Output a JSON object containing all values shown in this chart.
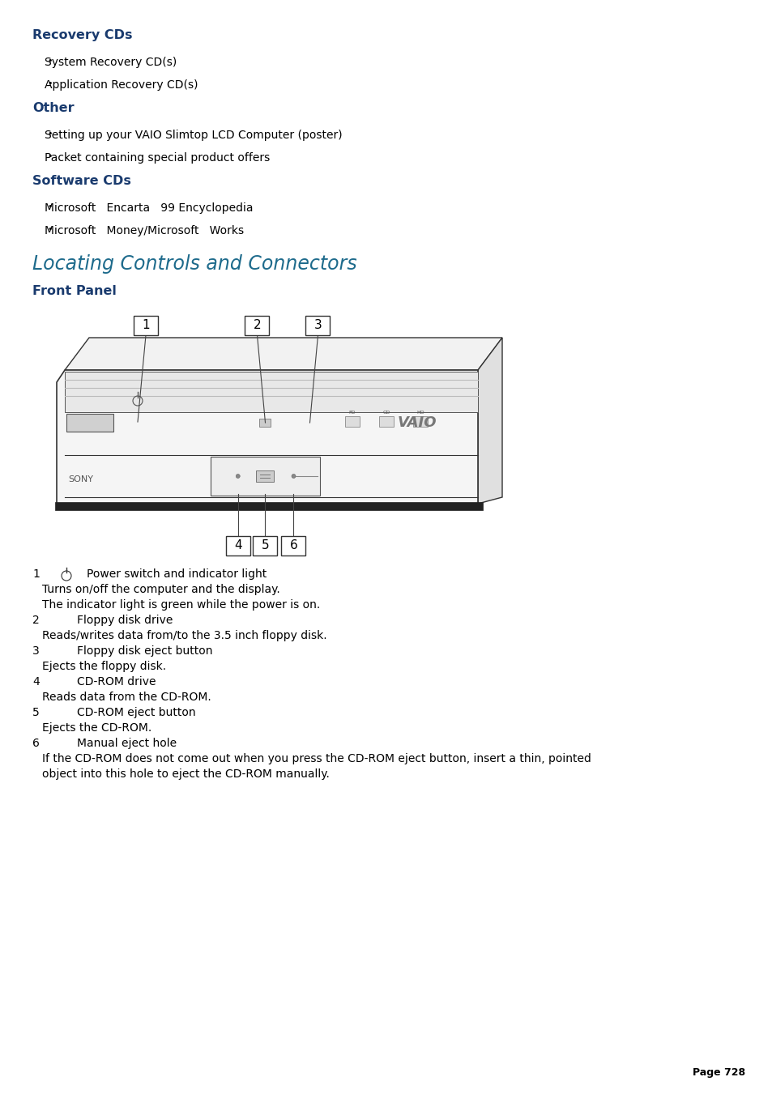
{
  "bg_color": "#ffffff",
  "dark_blue": "#1a3b6e",
  "teal_blue": "#1e6b8c",
  "black": "#000000",
  "page_number": "Page 728",
  "locating_title": "Locating Controls and Connectors",
  "front_panel_heading": "Front Panel",
  "sections": [
    {
      "type": "bold_heading",
      "text": "Recovery CDs",
      "color": "#1a3b6e"
    },
    {
      "type": "bullet",
      "text": "System Recovery CD(s)"
    },
    {
      "type": "bullet",
      "text": "Application Recovery CD(s)"
    },
    {
      "type": "bold_heading",
      "text": "Other",
      "color": "#1a3b6e"
    },
    {
      "type": "bullet",
      "text": "Setting up your VAIO Slimtop LCD Computer (poster)"
    },
    {
      "type": "bullet",
      "text": "Packet containing special product offers"
    },
    {
      "type": "bold_heading",
      "text": "Software CDs",
      "color": "#1a3b6e"
    },
    {
      "type": "bullet",
      "text": "Microsoft   Encarta   99 Encyclopedia"
    },
    {
      "type": "bullet",
      "text": "Microsoft   Money/Microsoft   Works"
    }
  ],
  "desc_lines": [
    {
      "num": "1",
      "has_icon": true,
      "text": "Power switch and indicator light",
      "indent": false
    },
    {
      "num": null,
      "has_icon": false,
      "text": "Turns on/off the computer and the display.",
      "indent": true
    },
    {
      "num": null,
      "has_icon": false,
      "text": "The indicator light is green while the power is on.",
      "indent": true
    },
    {
      "num": "2",
      "has_icon": false,
      "text": "Floppy disk drive",
      "indent": false
    },
    {
      "num": null,
      "has_icon": false,
      "text": "Reads/writes data from/to the 3.5 inch floppy disk.",
      "indent": true
    },
    {
      "num": "3",
      "has_icon": false,
      "text": "Floppy disk eject button",
      "indent": false
    },
    {
      "num": null,
      "has_icon": false,
      "text": "Ejects the floppy disk.",
      "indent": true
    },
    {
      "num": "4",
      "has_icon": false,
      "text": "CD-ROM drive",
      "indent": false
    },
    {
      "num": null,
      "has_icon": false,
      "text": "Reads data from the CD-ROM.",
      "indent": true
    },
    {
      "num": "5",
      "has_icon": false,
      "text": "CD-ROM eject button",
      "indent": false
    },
    {
      "num": null,
      "has_icon": false,
      "text": "Ejects the CD-ROM.",
      "indent": true
    },
    {
      "num": "6",
      "has_icon": false,
      "text": "Manual eject hole",
      "indent": false
    },
    {
      "num": null,
      "has_icon": false,
      "text": "If the CD-ROM does not come out when you press the CD-ROM eject button, insert a thin, pointed",
      "indent": true
    },
    {
      "num": null,
      "has_icon": false,
      "text": "object into this hole to eject the CD-ROM manually.",
      "indent": true
    }
  ]
}
